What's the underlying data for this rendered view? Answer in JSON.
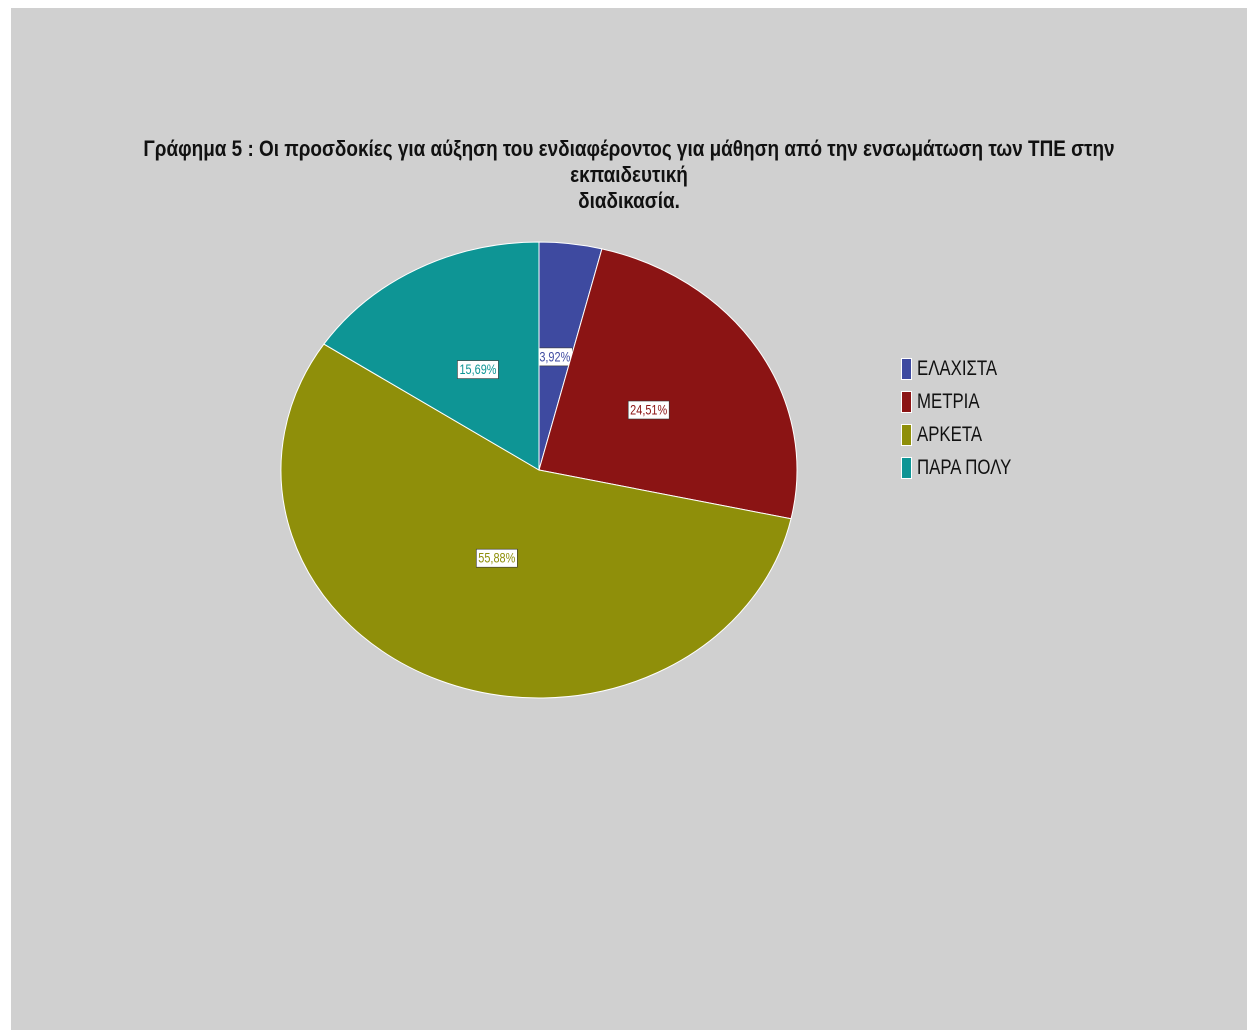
{
  "chart_data": {
    "type": "pie",
    "title": "Γράφημα 5 : Οι προσδοκίες για αύξηση του ενδιαφέροντος για μάθηση από την ενσωμάτωση των ΤΠΕ στην εκπαιδευτική διαδικασία.",
    "title_lines": [
      "Γράφημα 5 : Οι προσδοκίες για αύξηση του ενδιαφέροντος για μάθηση από την ενσωμάτωση των ΤΠΕ στην εκπαιδευτική",
      "διαδικασία."
    ],
    "categories": [
      "ΕΛΑΧΙΣΤΑ",
      "ΜΕΤΡΙΑ",
      "ΑΡΚΕΤΑ",
      "ΠΑΡΑ ΠΟΛΥ"
    ],
    "values": [
      3.92,
      24.51,
      55.88,
      15.69
    ],
    "data_labels": [
      "3,92%",
      "24,51%",
      "55,88%",
      "15,69%"
    ],
    "colors": [
      "#3e4aa0",
      "#8b1414",
      "#8f8f0a",
      "#0e9595"
    ],
    "legend_position": "right"
  }
}
